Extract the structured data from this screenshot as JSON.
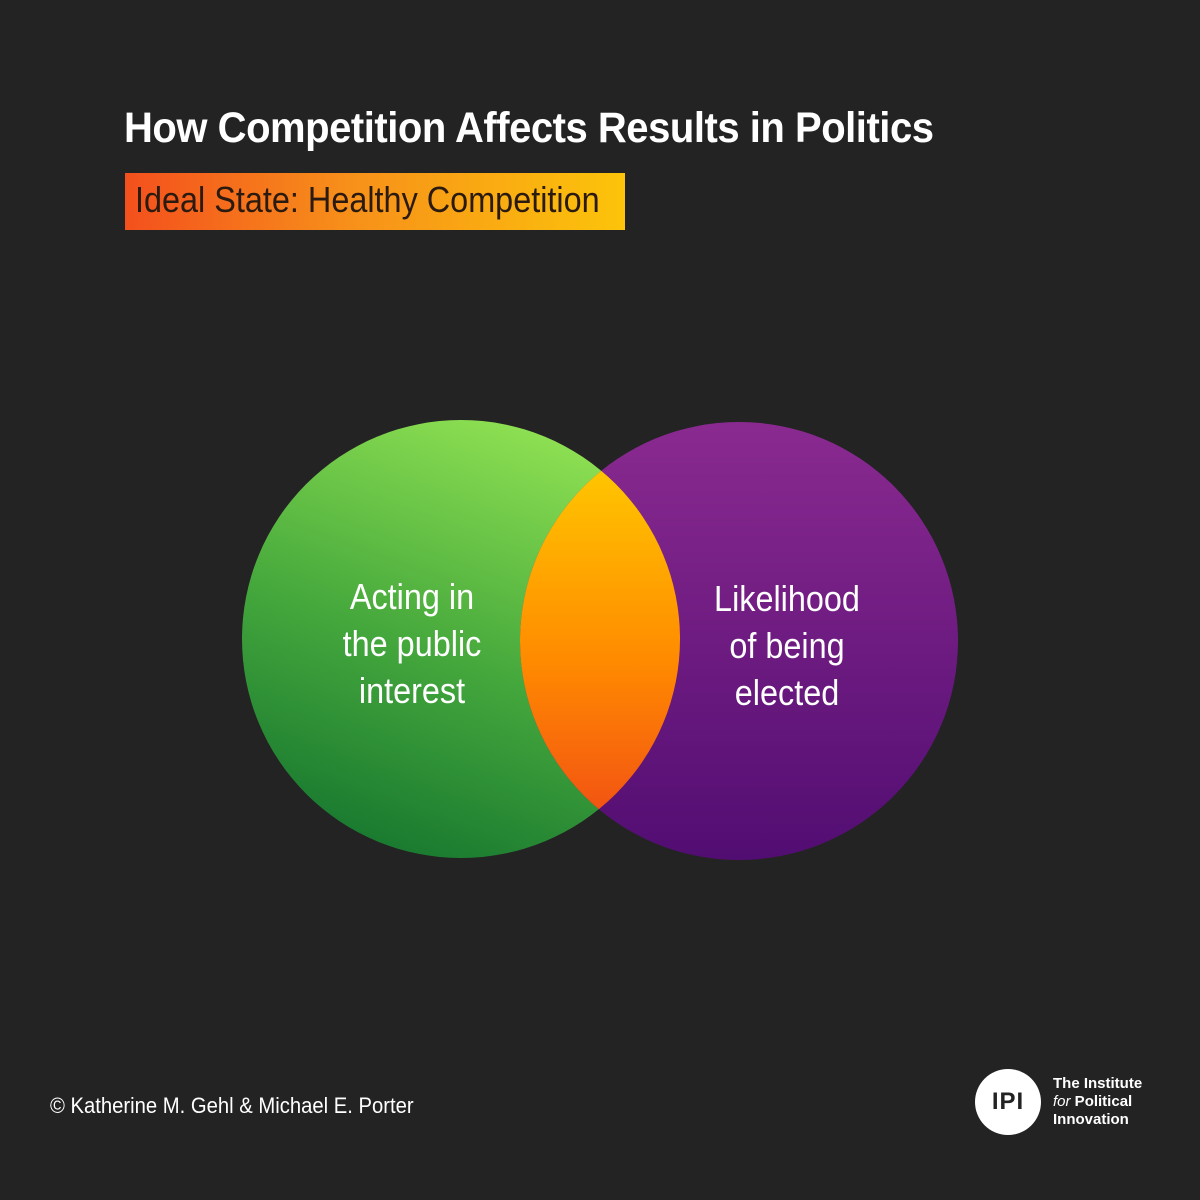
{
  "title": "How Competition Affects Results in Politics",
  "subtitle": "Ideal State: Healthy Competition",
  "venn": {
    "left_label_lines": [
      "Acting in",
      "the public",
      "interest"
    ],
    "right_label_lines": [
      "Likelihood",
      "of being",
      "elected"
    ],
    "colors": {
      "background": "#232323",
      "left_circle": [
        "#8ee052",
        "#1a7a30"
      ],
      "right_circle": [
        "#8a2a90",
        "#520d72"
      ],
      "overlap": [
        "#ffd400",
        "#ff8a00",
        "#e8401a"
      ]
    }
  },
  "footer": {
    "copyright": "© Katherine M. Gehl & Michael E. Porter",
    "logo_text": "IPI",
    "org_line1": "The Institute",
    "org_line2_italic": "for",
    "org_line2_rest": " Political",
    "org_line3": "Innovation"
  }
}
